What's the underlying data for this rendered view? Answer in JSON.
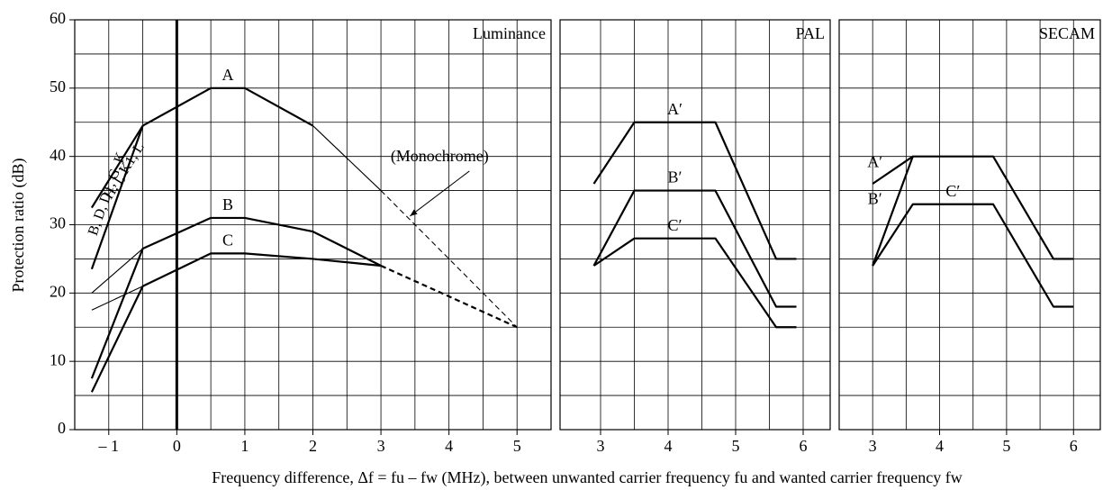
{
  "chart_data": [
    {
      "type": "line",
      "title": "Luminance",
      "ylabel": "Protection ratio (dB)",
      "xlabel": "Frequency difference, Δf = fu – fw (MHz), between unwanted carrier frequency fu and wanted carrier frequency fw",
      "xlim": [
        -1.5,
        5.5
      ],
      "ylim": [
        0,
        60
      ],
      "xticks": [
        {
          "value": -1,
          "label": "– 1"
        },
        0,
        1,
        2,
        3,
        4,
        5
      ],
      "yticks": [
        0,
        10,
        20,
        30,
        40,
        50,
        60
      ],
      "xgrid": [
        -1.5,
        -1,
        -0.5,
        0,
        0.5,
        1,
        1.5,
        2,
        2.5,
        3,
        3.5,
        4,
        4.5,
        5,
        5.5
      ],
      "ygrid": [
        0,
        5,
        10,
        15,
        20,
        25,
        30,
        35,
        40,
        45,
        50,
        55,
        60
      ],
      "grid": true,
      "zero_line": true,
      "series": [
        {
          "name": "A",
          "color": "#000000",
          "width": 2,
          "dash": false,
          "label_position": "top",
          "x": [
            -0.5,
            0.5,
            1,
            2
          ],
          "values": [
            44.5,
            50,
            50,
            44.5
          ]
        },
        {
          "color": "#000000",
          "width": 1,
          "dash": false,
          "x": [
            2,
            3
          ],
          "values": [
            44.5,
            35
          ]
        },
        {
          "name": "H, I, K1, L",
          "color": "#000000",
          "width": 2,
          "dash": false,
          "label_position": "along-left",
          "x": [
            -1.25,
            -0.5
          ],
          "values": [
            32.5,
            44.5
          ]
        },
        {
          "name": "B, D, D1, G, K",
          "color": "#000000",
          "width": 2,
          "dash": false,
          "label_position": "along-right",
          "x": [
            -1.25,
            -0.5
          ],
          "values": [
            23.5,
            44.5
          ]
        },
        {
          "name": "B",
          "color": "#000000",
          "width": 2,
          "dash": false,
          "label_position": "top",
          "x": [
            -1.25,
            -0.5,
            0.5,
            1,
            2,
            3
          ],
          "values": [
            7.5,
            26.5,
            31,
            31,
            29,
            24
          ]
        },
        {
          "color": "#000000",
          "width": 1,
          "dash": false,
          "x": [
            -1.25,
            -0.5
          ],
          "values": [
            20,
            26.5
          ]
        },
        {
          "name": "C",
          "color": "#000000",
          "width": 2,
          "dash": false,
          "label_position": "top",
          "x": [
            -1.25,
            -0.5,
            0.5,
            1,
            2,
            3
          ],
          "values": [
            5.5,
            21,
            25.8,
            25.8,
            25,
            24
          ]
        },
        {
          "color": "#000000",
          "width": 1,
          "dash": false,
          "x": [
            -1.25,
            -0.5
          ],
          "values": [
            17.5,
            21
          ]
        },
        {
          "color": "#000000",
          "width": 2,
          "dash": true,
          "x": [
            3,
            5
          ],
          "values": [
            24,
            15
          ]
        },
        {
          "name": "(Monochrome)",
          "color": "#000000",
          "width": 1,
          "dash": true,
          "label_position": "callout",
          "x": [
            3,
            5
          ],
          "values": [
            35,
            15
          ]
        }
      ]
    },
    {
      "type": "line",
      "title": "PAL",
      "xlim": [
        2.4,
        6.4
      ],
      "ylim": [
        0,
        60
      ],
      "xticks": [
        3,
        4,
        5,
        6
      ],
      "xgrid": [
        3,
        3.5,
        4,
        4.5,
        5,
        5.5,
        6
      ],
      "ygrid": [
        0,
        5,
        10,
        15,
        20,
        25,
        30,
        35,
        40,
        45,
        50,
        55,
        60
      ],
      "grid": true,
      "series": [
        {
          "name": "A′",
          "color": "#000000",
          "width": 2,
          "dash": false,
          "label_position": "top",
          "x": [
            2.9,
            3.5,
            4.7,
            5.6,
            5.9
          ],
          "values": [
            36,
            45,
            45,
            25,
            25
          ]
        },
        {
          "name": "B′",
          "color": "#000000",
          "width": 2,
          "dash": false,
          "label_position": "top",
          "x": [
            2.9,
            3.5,
            4.7,
            5.6,
            5.9
          ],
          "values": [
            24,
            35,
            35,
            18,
            18
          ]
        },
        {
          "name": "C′",
          "color": "#000000",
          "width": 2,
          "dash": false,
          "label_position": "top",
          "x": [
            2.9,
            3.5,
            4.7,
            5.6,
            5.9
          ],
          "values": [
            24,
            28,
            28,
            15,
            15
          ]
        }
      ]
    },
    {
      "type": "line",
      "title": "SECAM",
      "xlim": [
        2.5,
        6.4
      ],
      "ylim": [
        0,
        60
      ],
      "xticks": [
        3,
        4,
        5,
        6
      ],
      "xgrid": [
        3,
        3.5,
        4,
        4.5,
        5,
        5.5,
        6
      ],
      "ygrid": [
        0,
        5,
        10,
        15,
        20,
        25,
        30,
        35,
        40,
        45,
        50,
        55,
        60
      ],
      "grid": true,
      "series": [
        {
          "name": "A′",
          "color": "#000000",
          "width": 2,
          "dash": false,
          "label_position": "start",
          "x": [
            3,
            3.6,
            4.8,
            5.7,
            6
          ],
          "values": [
            36,
            40,
            40,
            25,
            25
          ]
        },
        {
          "name": "B′",
          "color": "#000000",
          "width": 2,
          "dash": false,
          "label_position": "start",
          "x": [
            3,
            3.6
          ],
          "values": [
            24,
            40
          ]
        },
        {
          "name": "C′",
          "color": "#000000",
          "width": 2,
          "dash": false,
          "label_position": "top",
          "x": [
            3,
            3.6,
            4.8,
            5.7,
            6
          ],
          "values": [
            24,
            33,
            33,
            18,
            18
          ]
        }
      ]
    }
  ]
}
